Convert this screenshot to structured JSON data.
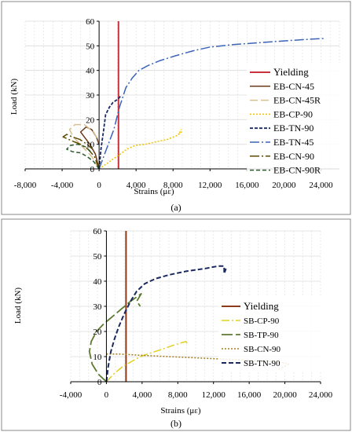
{
  "chart_data": [
    {
      "type": "line",
      "panel_label": "(a)",
      "xlabel": "Strains (με)",
      "ylabel": "Load (kN)",
      "xlim": [
        -8000,
        26000
      ],
      "ylim": [
        0,
        60
      ],
      "xticks": [
        -8000,
        -4000,
        0,
        4000,
        8000,
        12000,
        16000,
        20000,
        24000
      ],
      "xtick_labels": [
        "-8,000",
        "-4,000",
        "0",
        "4,000",
        "8,000",
        "12,000",
        "16,000",
        "20,000",
        "24,000"
      ],
      "yticks": [
        0,
        10,
        20,
        30,
        40,
        50,
        60
      ],
      "ytick_labels": [
        "0",
        "10",
        "20",
        "30",
        "40",
        "50",
        "60"
      ],
      "grid": true,
      "legend_position": "right",
      "series": [
        {
          "name": "Yielding",
          "color": "#c8323c",
          "dash": "",
          "width": 2,
          "x": [
            2100,
            2100
          ],
          "y": [
            0,
            60
          ]
        },
        {
          "name": "EB-CN-45",
          "color": "#6b3a1a",
          "dash": "",
          "width": 1.5,
          "x": [
            0,
            -400,
            -1000,
            -1600,
            -2000,
            -1400,
            -800,
            -300,
            0
          ],
          "y": [
            0,
            6,
            10,
            13,
            15,
            17,
            16,
            13,
            10
          ]
        },
        {
          "name": "EB-CN-45R",
          "color": "#d8c090",
          "dash": "10,4",
          "width": 1.5,
          "x": [
            0,
            -800,
            -1800,
            -2800,
            -3200,
            -2600,
            -1600,
            -600,
            0
          ],
          "y": [
            0,
            5,
            9,
            13,
            16,
            18,
            18,
            15,
            11
          ]
        },
        {
          "name": "EB-CP-90",
          "color": "#f2c200",
          "dash": "2,2",
          "width": 1.5,
          "x": [
            0,
            800,
            1500,
            2300,
            3000,
            3900,
            5000,
            6200,
            7400,
            8400,
            8900,
            8600,
            8900
          ],
          "y": [
            0,
            2,
            4,
            6,
            8,
            9.5,
            10,
            11,
            12,
            13.5,
            15,
            14,
            16
          ]
        },
        {
          "name": "EB-TN-90",
          "color": "#1a2a60",
          "dash": "4,2",
          "width": 1.8,
          "x": [
            0,
            200,
            500,
            700,
            1100,
            1500,
            1900,
            2200,
            2400
          ],
          "y": [
            0,
            8,
            16,
            22,
            25,
            27,
            28,
            29,
            30
          ]
        },
        {
          "name": "EB-TN-45",
          "color": "#3b63b8",
          "dash": "12,3,2,3",
          "width": 1.5,
          "x": [
            0,
            800,
            1600,
            2200,
            2900,
            3600,
            4300,
            5300,
            6600,
            8300,
            10200,
            12000,
            14500,
            17000,
            20000,
            22400,
            24500
          ],
          "y": [
            0,
            8,
            16,
            25,
            33,
            37,
            40,
            42,
            44,
            46,
            48,
            49.5,
            50.5,
            51.2,
            52,
            52.6,
            53
          ]
        },
        {
          "name": "EB-CN-90",
          "color": "#5c4a00",
          "dash": "12,3,2,3",
          "width": 1.5,
          "x": [
            0,
            -500,
            -1200,
            -2000,
            -2700,
            -3300,
            -3900,
            -3500,
            -2900,
            -2100,
            -1300,
            -700
          ],
          "y": [
            0,
            5,
            8,
            10,
            11,
            12,
            13,
            14,
            13,
            12,
            10,
            8
          ]
        },
        {
          "name": "EB-CN-90R",
          "color": "#2d5a2d",
          "dash": "5,3",
          "width": 1.5,
          "x": [
            0,
            -600,
            -1300,
            -2000,
            -2900,
            -3500,
            -3100,
            -2300,
            -1500,
            -900
          ],
          "y": [
            0,
            3,
            5,
            6.5,
            7,
            8,
            9.5,
            10,
            9,
            7
          ]
        }
      ]
    },
    {
      "type": "line",
      "panel_label": "(b)",
      "xlabel": "Strains (με)",
      "ylabel": "Load (kN)",
      "xlim": [
        -4000,
        24000
      ],
      "ylim": [
        0,
        60
      ],
      "xticks": [
        -4000,
        0,
        4000,
        8000,
        12000,
        16000,
        20000,
        24000
      ],
      "xtick_labels": [
        "-4,000",
        "0",
        "4,000",
        "8,000",
        "12,000",
        "16,000",
        "20,000",
        "24,000"
      ],
      "yticks": [
        0,
        10,
        20,
        30,
        40,
        50,
        60
      ],
      "ytick_labels": [
        "0",
        "10",
        "20",
        "30",
        "40",
        "50",
        "60"
      ],
      "grid": true,
      "legend_position": "right",
      "series": [
        {
          "name": "Yielding",
          "color": "#8b3a1a",
          "dash": "",
          "width": 2,
          "x": [
            2200,
            2200
          ],
          "y": [
            0,
            60
          ]
        },
        {
          "name": "SB-CP-90",
          "color": "#e0d020",
          "dash": "10,3,2,3",
          "width": 1.5,
          "x": [
            0,
            800,
            1800,
            2800,
            3800,
            5000,
            6300,
            7500,
            8400,
            8900,
            9100
          ],
          "y": [
            0,
            3,
            6,
            8,
            10,
            11.5,
            13,
            14.5,
            15.5,
            16,
            15
          ]
        },
        {
          "name": "SB-TP-90",
          "color": "#5e7a2e",
          "dash": "14,4",
          "width": 1.8,
          "x": [
            0,
            -900,
            -1600,
            -1900,
            -1700,
            -1100,
            -300,
            700,
            1700,
            2700,
            3500,
            3900,
            3400,
            3800
          ],
          "y": [
            0,
            3,
            7,
            12,
            16,
            20,
            23,
            26,
            29,
            32,
            34,
            35,
            32,
            30
          ]
        },
        {
          "name": "SB-CN-90",
          "color": "#a08020",
          "dash": "2,2",
          "width": 1.5,
          "x": [
            0,
            1500,
            4000,
            7000,
            10000,
            13000,
            16000,
            18500,
            20000,
            20400,
            19900,
            19300
          ],
          "y": [
            11,
            11,
            10.5,
            10,
            9.5,
            9,
            8.5,
            8,
            7.5,
            7,
            6,
            5
          ]
        },
        {
          "name": "SB-TN-90",
          "color": "#1a2a60",
          "dash": "6,3",
          "width": 2,
          "x": [
            0,
            200,
            500,
            900,
            1400,
            2000,
            2700,
            3400,
            4300,
            5500,
            7000,
            9000,
            11000,
            12500,
            13200,
            13200,
            13400
          ],
          "y": [
            0,
            6,
            12,
            17,
            22,
            27,
            32,
            36,
            39,
            41,
            42.5,
            44,
            45,
            46,
            46,
            43,
            45
          ]
        }
      ]
    }
  ]
}
